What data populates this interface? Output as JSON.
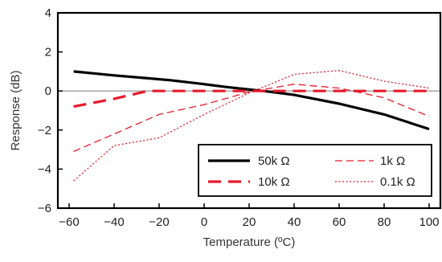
{
  "chart_data": {
    "type": "line",
    "xlabel": "Temperature (ºC)",
    "ylabel": "Response (dB)",
    "xlim": [
      -65,
      105
    ],
    "ylim": [
      -6,
      4
    ],
    "xticks": [
      -60,
      -40,
      -20,
      0,
      20,
      40,
      60,
      80,
      100
    ],
    "yticks": [
      -6,
      -4,
      -2,
      0,
      2,
      4
    ],
    "tick_labels_x": [
      "−60",
      "−40",
      "−20",
      "0",
      "20",
      "40",
      "60",
      "80",
      "100"
    ],
    "tick_labels_y": [
      "−6",
      "−4",
      "−2",
      "0",
      "2",
      "4"
    ],
    "zero_line": true,
    "grid": false,
    "legend_position": "bottom-right",
    "series": [
      {
        "name": "50k Ω",
        "color": "#000000",
        "style": "solid",
        "x": [
          -58,
          -40,
          -25,
          -15,
          0,
          10,
          20,
          30,
          40,
          60,
          80,
          100
        ],
        "y": [
          1.0,
          0.8,
          0.65,
          0.55,
          0.35,
          0.2,
          0.08,
          -0.05,
          -0.2,
          -0.65,
          -1.2,
          -1.95
        ]
      },
      {
        "name": "10k Ω",
        "color": "#e8192c",
        "style": "dashed-heavy",
        "x": [
          -58,
          -40,
          -25,
          -10,
          0,
          20,
          40,
          60,
          80,
          100
        ],
        "y": [
          -0.8,
          -0.4,
          0.0,
          0.0,
          0.0,
          0.0,
          0.0,
          0.0,
          0.0,
          0.0
        ]
      },
      {
        "name": "1k Ω",
        "color": "#e8192c",
        "style": "dashed-light",
        "x": [
          -58,
          -40,
          -20,
          0,
          20,
          40,
          60,
          80,
          100
        ],
        "y": [
          -3.1,
          -2.2,
          -1.2,
          -0.7,
          -0.05,
          0.35,
          0.15,
          -0.35,
          -1.3
        ]
      },
      {
        "name": "0.1k Ω",
        "color": "#e8192c",
        "style": "dotted",
        "x": [
          -58,
          -40,
          -20,
          0,
          20,
          40,
          60,
          80,
          100
        ],
        "y": [
          -4.6,
          -2.8,
          -2.4,
          -1.2,
          -0.1,
          0.85,
          1.05,
          0.5,
          0.15
        ]
      }
    ]
  }
}
